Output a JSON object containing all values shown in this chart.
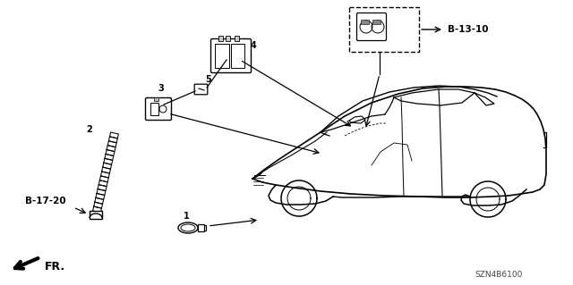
{
  "background_color": "#ffffff",
  "fig_width": 6.4,
  "fig_height": 3.19,
  "dpi": 100,
  "diagram_code_text": "SZN4B6100",
  "fr_label": "FR.",
  "ref_label": "B-13-10",
  "ref_label2": "B-17-20",
  "line_color": "#000000",
  "text_color": "#000000"
}
